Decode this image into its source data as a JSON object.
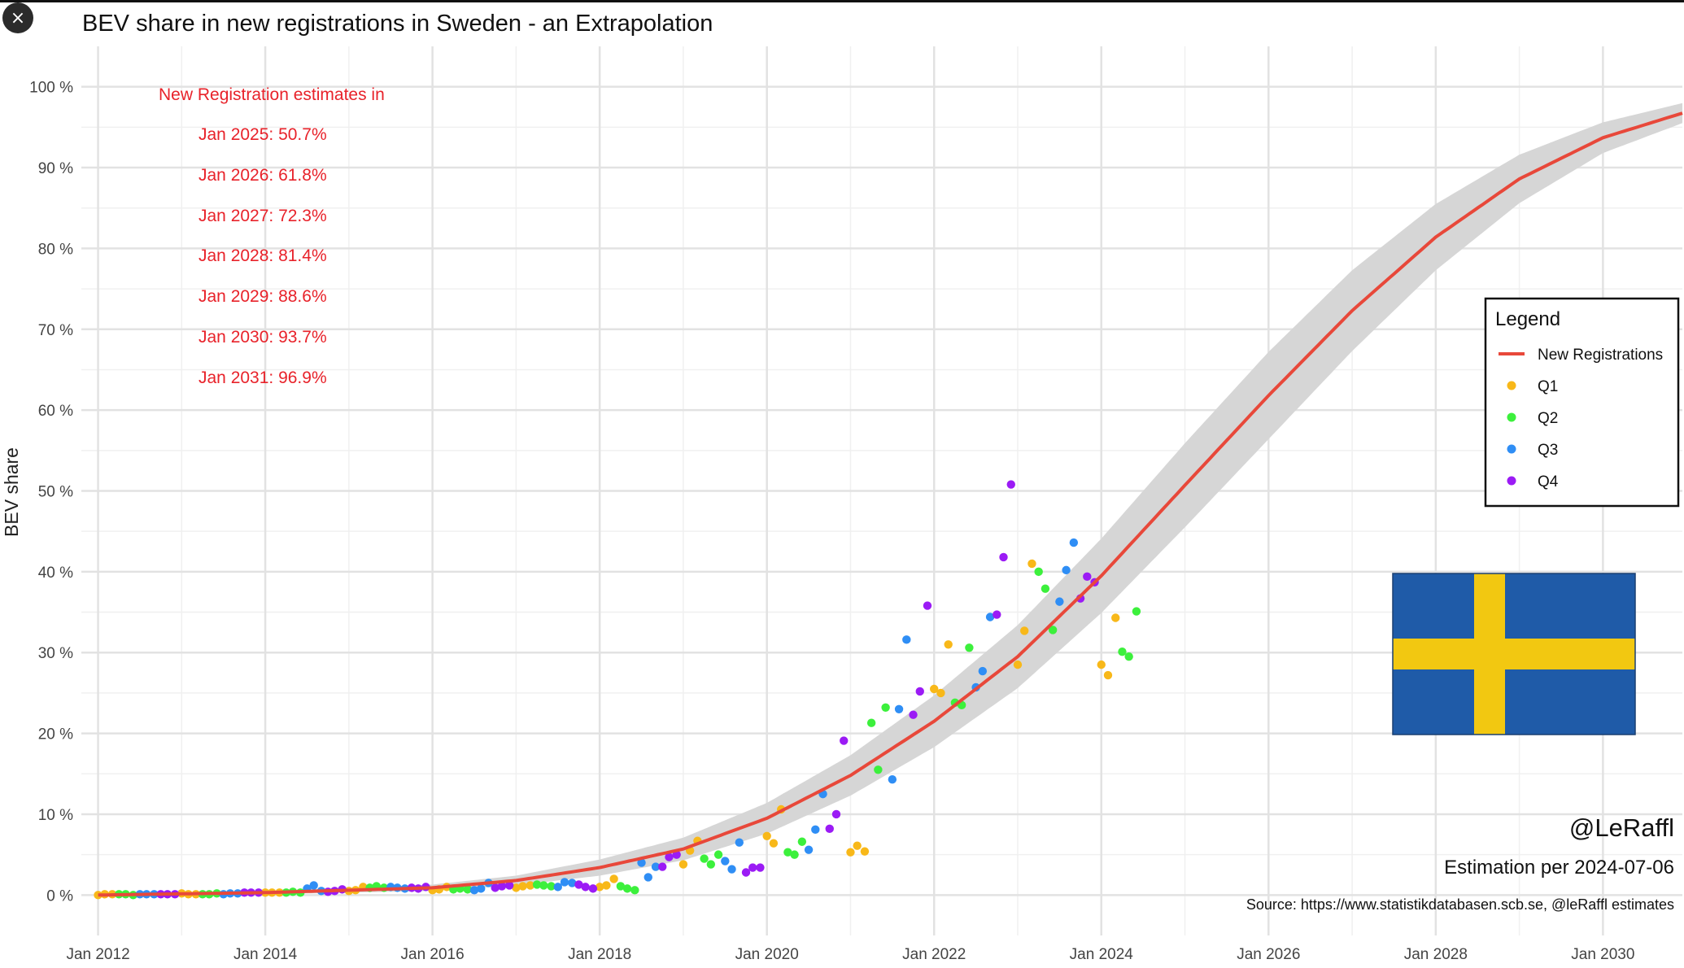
{
  "close_icon": "×",
  "colors": {
    "line": "#E8483A",
    "band": "#d6d6d6",
    "annotation": "#e8222a",
    "Q1": "#F8B819",
    "Q2": "#3CF03C",
    "Q3": "#2F8EF5",
    "Q4": "#9B1BF5",
    "flag_blue": "#1F5BA8",
    "flag_yellow": "#F2C811"
  },
  "annotation": {
    "header": "New Registration estimates in",
    "lines": [
      "Jan 2025: 50.7%",
      "Jan 2026: 61.8%",
      "Jan 2027: 72.3%",
      "Jan 2028: 81.4%",
      "Jan 2029: 88.6%",
      "Jan 2030: 93.7%",
      "Jan 2031: 96.9%"
    ]
  },
  "credits": {
    "handle": "@LeRaffl",
    "estimation": "Estimation per 2024-07-06",
    "source": "Source: https://www.statistikdatabasen.scb.se, @leRaffl estimates"
  },
  "flag": "sweden-flag",
  "chart_data": {
    "type": "scatter",
    "title": "BEV share in new registrations in Sweden - an Extrapolation",
    "xlabel": "",
    "ylabel": "BEV share",
    "xlim": [
      2011.8,
      2030.95
    ],
    "ylim": [
      -5,
      105
    ],
    "x_ticks": [
      2012,
      2014,
      2016,
      2018,
      2020,
      2022,
      2024,
      2026,
      2028,
      2030
    ],
    "x_tick_labels": [
      "Jan 2012",
      "Jan 2014",
      "Jan 2016",
      "Jan 2018",
      "Jan 2020",
      "Jan 2022",
      "Jan 2024",
      "Jan 2026",
      "Jan 2028",
      "Jan 2030"
    ],
    "y_ticks": [
      0,
      10,
      20,
      30,
      40,
      50,
      60,
      70,
      80,
      90,
      100
    ],
    "y_tick_labels": [
      "0 %",
      "10 %",
      "20 %",
      "30 %",
      "40 %",
      "50 %",
      "60 %",
      "70 %",
      "80 %",
      "90 %",
      "100 %"
    ],
    "grid": true,
    "legend": {
      "title": "Legend",
      "position": "right",
      "entries": [
        "New Registrations",
        "Q1",
        "Q2",
        "Q3",
        "Q4"
      ]
    },
    "fit_series": {
      "name": "New Registrations",
      "x": [
        2012,
        2014,
        2016,
        2017,
        2018,
        2019,
        2020,
        2021,
        2022,
        2023,
        2024,
        2025,
        2026,
        2027,
        2028,
        2029,
        2030,
        2031
      ],
      "y": [
        0.0,
        0.3,
        0.9,
        1.8,
        3.4,
        5.7,
        9.5,
        14.8,
        21.5,
        29.5,
        39.5,
        50.7,
        61.8,
        72.3,
        81.4,
        88.6,
        93.7,
        96.9
      ],
      "band_halfwidth": [
        0.1,
        0.2,
        0.4,
        0.6,
        1.0,
        1.4,
        1.9,
        2.5,
        3.2,
        3.9,
        4.6,
        5.2,
        5.4,
        5.0,
        4.1,
        3.0,
        1.9,
        1.2
      ]
    },
    "series": [
      {
        "name": "Q1",
        "points": [
          [
            2012.0,
            0.0
          ],
          [
            2012.08,
            0.1
          ],
          [
            2012.17,
            0.1
          ],
          [
            2013.0,
            0.2
          ],
          [
            2013.08,
            0.1
          ],
          [
            2013.17,
            0.1
          ],
          [
            2014.0,
            0.3
          ],
          [
            2014.08,
            0.3
          ],
          [
            2014.17,
            0.3
          ],
          [
            2015.0,
            0.5
          ],
          [
            2015.08,
            0.6
          ],
          [
            2015.17,
            1.0
          ],
          [
            2016.0,
            0.6
          ],
          [
            2016.08,
            0.7
          ],
          [
            2016.17,
            1.0
          ],
          [
            2017.0,
            0.9
          ],
          [
            2017.08,
            1.1
          ],
          [
            2017.17,
            1.2
          ],
          [
            2018.0,
            1.0
          ],
          [
            2018.08,
            1.2
          ],
          [
            2018.17,
            2.0
          ],
          [
            2019.0,
            3.8
          ],
          [
            2019.08,
            5.5
          ],
          [
            2019.17,
            6.7
          ],
          [
            2020.0,
            7.3
          ],
          [
            2020.08,
            6.4
          ],
          [
            2020.17,
            10.6
          ],
          [
            2021.0,
            5.3
          ],
          [
            2021.08,
            6.1
          ],
          [
            2021.17,
            5.4
          ],
          [
            2022.0,
            25.5
          ],
          [
            2022.08,
            25.0
          ],
          [
            2022.17,
            31.0
          ],
          [
            2023.0,
            28.5
          ],
          [
            2023.08,
            32.7
          ],
          [
            2023.17,
            41.0
          ],
          [
            2024.0,
            28.5
          ],
          [
            2024.08,
            27.2
          ],
          [
            2024.17,
            34.3
          ]
        ]
      },
      {
        "name": "Q2",
        "points": [
          [
            2012.25,
            0.1
          ],
          [
            2012.33,
            0.1
          ],
          [
            2012.42,
            0.0
          ],
          [
            2013.25,
            0.1
          ],
          [
            2013.33,
            0.1
          ],
          [
            2013.42,
            0.2
          ],
          [
            2014.25,
            0.3
          ],
          [
            2014.33,
            0.4
          ],
          [
            2014.42,
            0.3
          ],
          [
            2015.25,
            0.9
          ],
          [
            2015.33,
            1.1
          ],
          [
            2015.42,
            0.9
          ],
          [
            2016.25,
            0.7
          ],
          [
            2016.33,
            0.8
          ],
          [
            2016.42,
            0.7
          ],
          [
            2017.25,
            1.3
          ],
          [
            2017.33,
            1.2
          ],
          [
            2017.42,
            1.1
          ],
          [
            2018.25,
            1.1
          ],
          [
            2018.33,
            0.8
          ],
          [
            2018.42,
            0.6
          ],
          [
            2019.25,
            4.5
          ],
          [
            2019.33,
            3.8
          ],
          [
            2019.42,
            5.0
          ],
          [
            2020.25,
            5.3
          ],
          [
            2020.33,
            5.0
          ],
          [
            2020.42,
            6.6
          ],
          [
            2021.25,
            21.3
          ],
          [
            2021.33,
            15.5
          ],
          [
            2021.42,
            23.2
          ],
          [
            2022.25,
            23.8
          ],
          [
            2022.33,
            23.5
          ],
          [
            2022.42,
            30.6
          ],
          [
            2023.25,
            40.0
          ],
          [
            2023.33,
            37.9
          ],
          [
            2023.42,
            32.8
          ],
          [
            2024.25,
            30.1
          ],
          [
            2024.33,
            29.5
          ],
          [
            2024.42,
            35.1
          ]
        ]
      },
      {
        "name": "Q3",
        "points": [
          [
            2012.5,
            0.1
          ],
          [
            2012.58,
            0.1
          ],
          [
            2012.67,
            0.1
          ],
          [
            2013.5,
            0.1
          ],
          [
            2013.58,
            0.2
          ],
          [
            2013.67,
            0.2
          ],
          [
            2014.5,
            0.8
          ],
          [
            2014.58,
            1.2
          ],
          [
            2014.67,
            0.5
          ],
          [
            2015.5,
            1.0
          ],
          [
            2015.58,
            0.9
          ],
          [
            2015.67,
            0.8
          ],
          [
            2016.5,
            0.6
          ],
          [
            2016.58,
            0.8
          ],
          [
            2016.67,
            1.5
          ],
          [
            2017.5,
            1.0
          ],
          [
            2017.58,
            1.6
          ],
          [
            2017.67,
            1.5
          ],
          [
            2018.5,
            4.0
          ],
          [
            2018.58,
            2.2
          ],
          [
            2018.67,
            3.5
          ],
          [
            2019.5,
            4.2
          ],
          [
            2019.58,
            3.2
          ],
          [
            2019.67,
            6.5
          ],
          [
            2020.5,
            5.6
          ],
          [
            2020.58,
            8.1
          ],
          [
            2020.67,
            12.5
          ],
          [
            2021.5,
            14.3
          ],
          [
            2021.58,
            23.0
          ],
          [
            2021.67,
            31.6
          ],
          [
            2022.5,
            25.7
          ],
          [
            2022.58,
            27.7
          ],
          [
            2022.67,
            34.4
          ],
          [
            2023.5,
            36.3
          ],
          [
            2023.58,
            40.2
          ],
          [
            2023.67,
            43.6
          ]
        ]
      },
      {
        "name": "Q4",
        "points": [
          [
            2012.75,
            0.1
          ],
          [
            2012.83,
            0.1
          ],
          [
            2012.92,
            0.1
          ],
          [
            2013.75,
            0.3
          ],
          [
            2013.83,
            0.3
          ],
          [
            2013.92,
            0.3
          ],
          [
            2014.75,
            0.4
          ],
          [
            2014.83,
            0.5
          ],
          [
            2014.92,
            0.7
          ],
          [
            2015.75,
            0.9
          ],
          [
            2015.83,
            0.8
          ],
          [
            2015.92,
            1.0
          ],
          [
            2016.75,
            0.9
          ],
          [
            2016.83,
            1.1
          ],
          [
            2016.92,
            1.2
          ],
          [
            2017.75,
            1.3
          ],
          [
            2017.83,
            1.0
          ],
          [
            2017.92,
            0.8
          ],
          [
            2018.75,
            3.5
          ],
          [
            2018.83,
            4.7
          ],
          [
            2018.92,
            5.0
          ],
          [
            2019.75,
            2.8
          ],
          [
            2019.83,
            3.4
          ],
          [
            2019.92,
            3.4
          ],
          [
            2020.75,
            8.2
          ],
          [
            2020.83,
            10.0
          ],
          [
            2020.92,
            19.1
          ],
          [
            2021.75,
            22.3
          ],
          [
            2021.83,
            25.2
          ],
          [
            2021.92,
            35.8
          ],
          [
            2022.75,
            34.7
          ],
          [
            2022.83,
            41.8
          ],
          [
            2022.92,
            50.8
          ],
          [
            2023.75,
            36.7
          ],
          [
            2023.83,
            39.4
          ],
          [
            2023.92,
            38.7
          ]
        ]
      }
    ]
  }
}
